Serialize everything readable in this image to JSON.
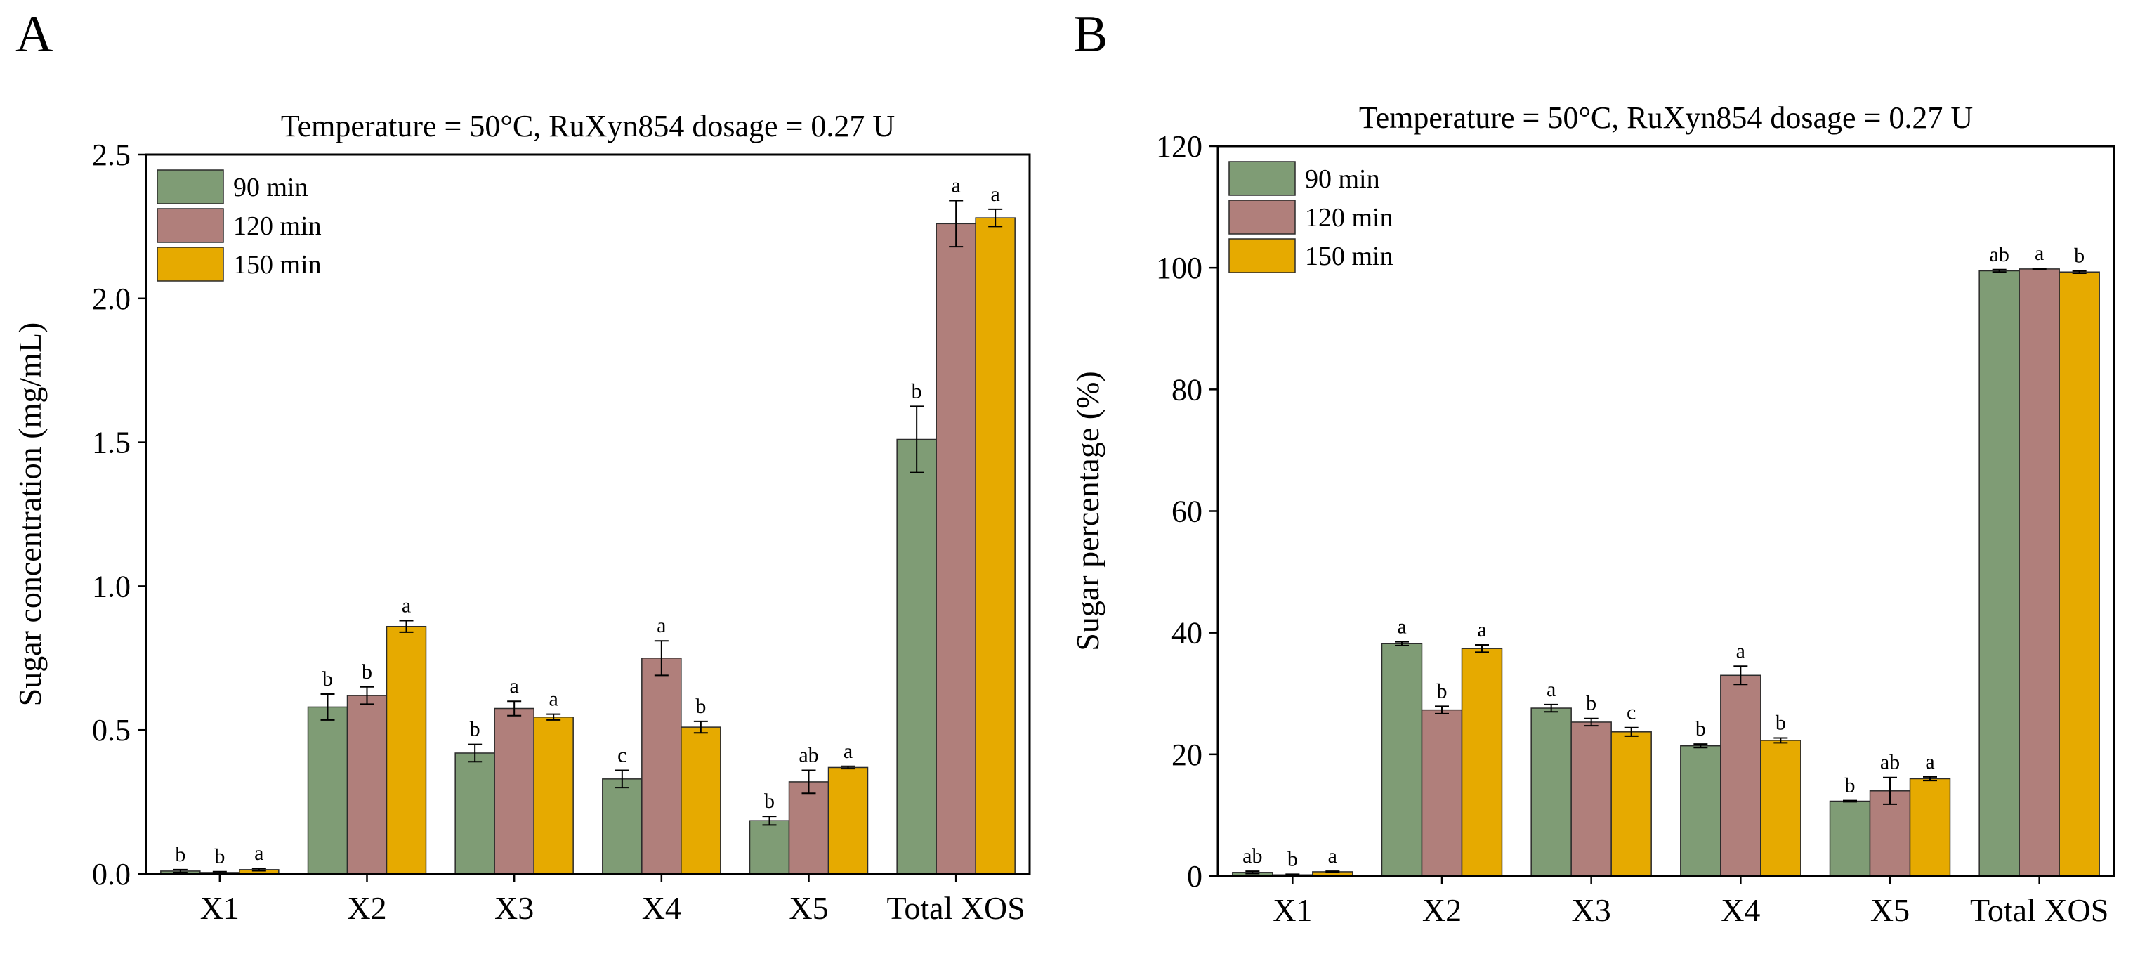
{
  "panels": [
    {
      "label": "A"
    },
    {
      "label": "B"
    }
  ],
  "colors": {
    "90 min": "#7f9c75",
    "120 min": "#b07f7b",
    "150 min": "#e6aa00"
  },
  "chart_data": [
    {
      "type": "bar",
      "title": "Temperature = 50°C, RuXyn854 dosage = 0.27 U",
      "xlabel": "",
      "ylabel": "Sugar concentration (mg/mL)",
      "ylim": [
        0,
        2.5
      ],
      "yticks": [
        "0.0",
        "0.5",
        "1.0",
        "1.5",
        "2.0",
        "2.5"
      ],
      "ytick_values": [
        0,
        0.5,
        1.0,
        1.5,
        2.0,
        2.5
      ],
      "legend_position": "top-left",
      "categories": [
        "X1",
        "X2",
        "X3",
        "X4",
        "X5",
        "Total XOS"
      ],
      "series": [
        {
          "name": "90 min",
          "values": [
            0.01,
            0.58,
            0.42,
            0.33,
            0.185,
            1.51
          ],
          "errors": [
            0.005,
            0.045,
            0.03,
            0.03,
            0.015,
            0.115
          ],
          "letters": [
            "b",
            "b",
            "b",
            "c",
            "b",
            "b"
          ]
        },
        {
          "name": "120 min",
          "values": [
            0.005,
            0.62,
            0.575,
            0.75,
            0.32,
            2.26
          ],
          "errors": [
            0.003,
            0.03,
            0.025,
            0.06,
            0.04,
            0.08
          ],
          "letters": [
            "b",
            "b",
            "a",
            "a",
            "ab",
            "a"
          ]
        },
        {
          "name": "150 min",
          "values": [
            0.015,
            0.86,
            0.545,
            0.51,
            0.37,
            2.28
          ],
          "errors": [
            0.004,
            0.02,
            0.01,
            0.02,
            0.004,
            0.03
          ],
          "letters": [
            "a",
            "a",
            "a",
            "b",
            "a",
            "a"
          ]
        }
      ]
    },
    {
      "type": "bar",
      "title": "Temperature = 50°C, RuXyn854 dosage = 0.27 U",
      "xlabel": "",
      "ylabel": "Sugar percentage (%)",
      "ylim": [
        0,
        120
      ],
      "yticks": [
        "0",
        "20",
        "40",
        "60",
        "80",
        "100",
        "120"
      ],
      "ytick_values": [
        0,
        20,
        40,
        60,
        80,
        100,
        120
      ],
      "legend_position": "top-left",
      "categories": [
        "X1",
        "X2",
        "X3",
        "X4",
        "X5",
        "Total XOS"
      ],
      "series": [
        {
          "name": "90 min",
          "values": [
            0.6,
            38.2,
            27.6,
            21.4,
            12.3,
            99.5
          ],
          "errors": [
            0.2,
            0.3,
            0.6,
            0.3,
            0.1,
            0.2
          ],
          "letters": [
            "ab",
            "a",
            "a",
            "b",
            "b",
            "ab"
          ]
        },
        {
          "name": "120 min",
          "values": [
            0.2,
            27.3,
            25.3,
            33.0,
            14.0,
            99.8
          ],
          "errors": [
            0.1,
            0.6,
            0.6,
            1.5,
            2.2,
            0.1
          ],
          "letters": [
            "b",
            "b",
            "b",
            "a",
            "ab",
            "a"
          ]
        },
        {
          "name": "150 min",
          "values": [
            0.7,
            37.4,
            23.7,
            22.3,
            16.0,
            99.3
          ],
          "errors": [
            0.1,
            0.6,
            0.7,
            0.4,
            0.3,
            0.2
          ],
          "letters": [
            "a",
            "a",
            "c",
            "b",
            "a",
            "b"
          ]
        }
      ]
    }
  ]
}
